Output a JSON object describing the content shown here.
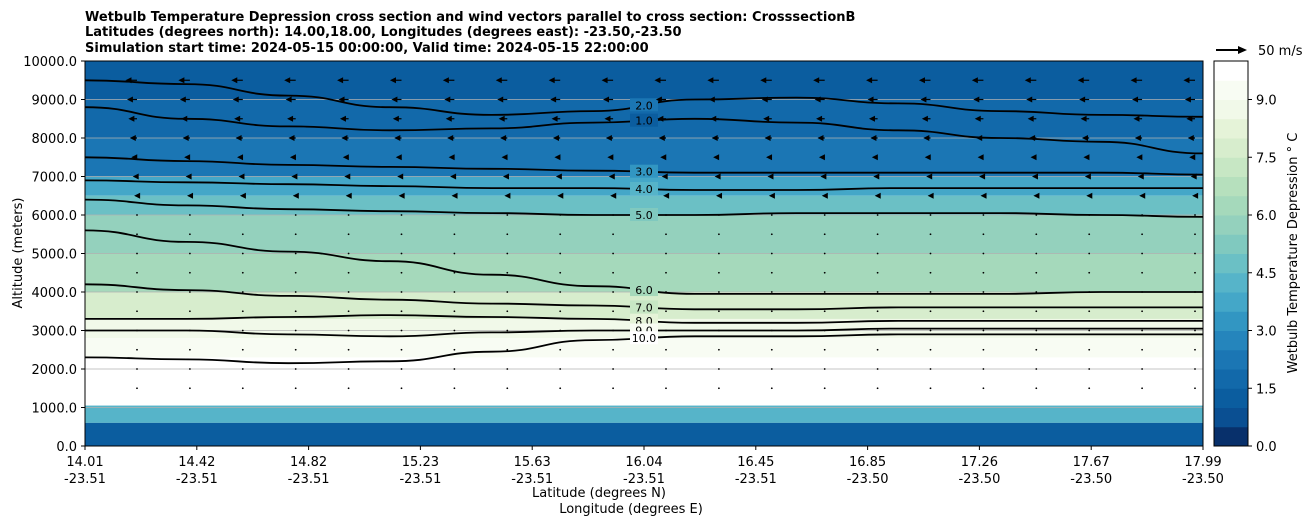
{
  "chart_data": {
    "type": "heatmap",
    "title_lines": [
      "Wetbulb Temperature Depression cross section and wind vectors parallel to cross section: CrosssectionB",
      "Latitudes (degrees north): 14.00,18.00, Longitudes (degrees east): -23.50,-23.50",
      "Simulation start time: 2024-05-15 00:00:00, Valid time: 2024-05-15 22:00:00"
    ],
    "ylabel": "Altitude (meters)",
    "xlabel_lines": [
      "Latitude (degrees N)",
      "Longitude (degrees E)"
    ],
    "ylim": [
      0,
      10000
    ],
    "y_ticks": [
      "0.0",
      "1000.0",
      "2000.0",
      "3000.0",
      "4000.0",
      "5000.0",
      "6000.0",
      "7000.0",
      "8000.0",
      "9000.0",
      "10000.0"
    ],
    "x_ticks": [
      {
        "lat": "14.01",
        "lon": "-23.51"
      },
      {
        "lat": "14.42",
        "lon": "-23.51"
      },
      {
        "lat": "14.82",
        "lon": "-23.51"
      },
      {
        "lat": "15.23",
        "lon": "-23.51"
      },
      {
        "lat": "15.63",
        "lon": "-23.51"
      },
      {
        "lat": "16.04",
        "lon": "-23.51"
      },
      {
        "lat": "16.45",
        "lon": "-23.51"
      },
      {
        "lat": "16.85",
        "lon": "-23.50"
      },
      {
        "lat": "17.26",
        "lon": "-23.50"
      },
      {
        "lat": "17.67",
        "lon": "-23.50"
      },
      {
        "lat": "17.99",
        "lon": "-23.50"
      }
    ],
    "colorbar": {
      "label": "Wetbulb Temperature Depression $^\\circ$ C",
      "label_display": "Wetbulb Temperature Depression ° C",
      "range": [
        0,
        10
      ],
      "ticks": [
        "0.0",
        "1.5",
        "3.0",
        "4.5",
        "6.0",
        "7.5",
        "9.0"
      ],
      "tick_values": [
        0,
        1.5,
        3,
        4.5,
        6,
        7.5,
        9
      ],
      "colors": [
        "#08306b",
        "#0a4f92",
        "#0b5d9f",
        "#1269aa",
        "#1b76b4",
        "#2585bc",
        "#3296c2",
        "#44a7c8",
        "#56b4c9",
        "#6bc0c5",
        "#80c9bf",
        "#94d1bd",
        "#a5d9bb",
        "#b6e0bd",
        "#c7e7c4",
        "#d7edcd",
        "#e5f3d8",
        "#f1f9e9",
        "#f8fcf3",
        "#ffffff"
      ]
    },
    "contour_labels": [
      "2.0",
      "1.0",
      "3.0",
      "4.0",
      "5.0",
      "6.0",
      "7.0",
      "8.0",
      "9.0",
      "10.0"
    ],
    "wind_legend": {
      "label": "50 m/s",
      "speed": 50
    },
    "bands": [
      {
        "ymin": 9000,
        "ymax": 10000,
        "value": 1.2
      },
      {
        "ymin": 8000,
        "ymax": 9000,
        "value": 1.6
      },
      {
        "ymin": 7000,
        "ymax": 8000,
        "value": 2.4
      },
      {
        "ymin": 6500,
        "ymax": 7000,
        "value": 3.6
      },
      {
        "ymin": 6000,
        "ymax": 6500,
        "value": 4.6
      },
      {
        "ymin": 5000,
        "ymax": 6000,
        "value": 5.5
      },
      {
        "ymin": 4000,
        "ymax": 5000,
        "value": 6.4
      },
      {
        "ymin": 3300,
        "ymax": 4000,
        "value": 7.6
      },
      {
        "ymin": 2800,
        "ymax": 3300,
        "value": 8.6
      },
      {
        "ymin": 2300,
        "ymax": 2800,
        "value": 9.4
      },
      {
        "ymin": 1050,
        "ymax": 2300,
        "value": 10.0
      },
      {
        "ymin": 600,
        "ymax": 1050,
        "value": 4.0
      },
      {
        "ymin": 0,
        "ymax": 600,
        "value": 1.2
      }
    ],
    "contours": [
      {
        "label": "2.0",
        "y": [
          9500,
          9400,
          9100,
          8800,
          8600,
          8700,
          9000,
          9050,
          8900,
          8700,
          8600,
          8550
        ]
      },
      {
        "label": "1.0",
        "y": [
          8800,
          8500,
          8300,
          8200,
          8250,
          8400,
          8500,
          8400,
          8200,
          8000,
          7900,
          7600
        ]
      },
      {
        "label": "3.0",
        "y": [
          7500,
          7400,
          7300,
          7250,
          7200,
          7150,
          7100,
          7100,
          7100,
          7100,
          7100,
          7050
        ]
      },
      {
        "label": "4.0",
        "y": [
          6900,
          6850,
          6800,
          6750,
          6700,
          6700,
          6650,
          6650,
          6700,
          6700,
          6700,
          6700
        ]
      },
      {
        "label": "5.0",
        "y": [
          6400,
          6250,
          6150,
          6100,
          6050,
          6000,
          6000,
          6050,
          6050,
          6050,
          6000,
          5950
        ]
      },
      {
        "label": "6.0",
        "y": [
          5600,
          5300,
          5050,
          4800,
          4450,
          4150,
          3950,
          3950,
          3950,
          3950,
          4000,
          4000
        ]
      },
      {
        "label": "7.0",
        "y": [
          4200,
          4050,
          3900,
          3800,
          3700,
          3650,
          3550,
          3550,
          3600,
          3600,
          3600,
          3600
        ]
      },
      {
        "label": "8.0",
        "y": [
          3300,
          3300,
          3350,
          3400,
          3350,
          3300,
          3200,
          3200,
          3250,
          3250,
          3250,
          3250
        ]
      },
      {
        "label": "9.0",
        "y": [
          3000,
          3000,
          2900,
          2850,
          2950,
          3000,
          3000,
          3000,
          3050,
          3050,
          3050,
          3050
        ]
      },
      {
        "label": "10.0",
        "y": [
          2300,
          2250,
          2150,
          2200,
          2450,
          2750,
          2850,
          2850,
          2900,
          2900,
          2900,
          2900
        ]
      }
    ],
    "wind_rows": [
      {
        "altitude": 9500,
        "u": -8
      },
      {
        "altitude": 9000,
        "u": -7
      },
      {
        "altitude": 8500,
        "u": -6
      },
      {
        "altitude": 8000,
        "u": -5
      },
      {
        "altitude": 7500,
        "u": -4
      },
      {
        "altitude": 7000,
        "u": -3
      },
      {
        "altitude": 6500,
        "u": -2
      }
    ]
  }
}
